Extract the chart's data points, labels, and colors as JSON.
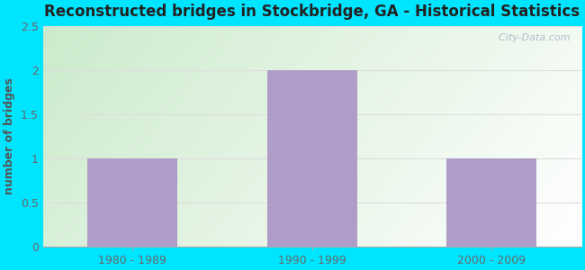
{
  "categories": [
    "1980 - 1989",
    "1990 - 1999",
    "2000 - 2009"
  ],
  "values": [
    1,
    2,
    1
  ],
  "bar_color": "#b09cc8",
  "title": "Reconstructed bridges in Stockbridge, GA - Historical Statistics",
  "ylabel": "number of bridges",
  "ylim": [
    0,
    2.5
  ],
  "yticks": [
    0,
    0.5,
    1.0,
    1.5,
    2.0,
    2.5
  ],
  "background_outer": "#00e5ff",
  "plot_bg_color_topleft": "#d8f0d0",
  "plot_bg_color_topright": "#f0f8f0",
  "plot_bg_color_bottomleft": "#e8f8e0",
  "plot_bg_color_bottomright": "#ffffff",
  "title_fontsize": 12,
  "axis_label_fontsize": 9,
  "tick_fontsize": 9,
  "watermark": "  City-Data.com",
  "grid_color": "#dddddd",
  "ylabel_color": "#555555",
  "tick_color": "#666666",
  "title_color": "#222222"
}
